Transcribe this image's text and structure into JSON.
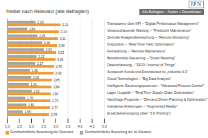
{
  "logo": "JPN",
  "chart_data": {
    "type": "bar",
    "orientation": "horizontal",
    "title": "Treiber nach Relevanz (alle Befragten)",
    "subtitle": "Alle Befragten – Nutzer + Dienstleister",
    "categories": [
      "Transparenz über KPI – \"Digital Performance Management\"",
      "Vorausschauende Wartung – \"Predictive Maintenance\"",
      "Zentrale Anlagenüberwachung – \"Remote Monitoring\"",
      "Disposition – \"Real Time Yield Optimization\"",
      "Fernwartung – \"Remote Maintenance\"",
      "Betriebsmittel-Steuerung – \"Smart Metering\"",
      "Datenerfassung – \"RFID / Internet of Things\"",
      "Austausch Kunde und Dienstleister zu „Industrie 4.0\"",
      "Cloud-Technologien – \"Big Data Analysis\"",
      "Intelligente Steuerungsprozesse – \"Advanced Process Control\"",
      "Lager / Logistik – \"Real Time Supply Chain Optimization\"",
      "Nachfrage-Prognose – \"Demand Driven Planning & Optimization\"",
      "Interaktive Anleitungen – \"Augmented Reality\"",
      "Ersatzteilversorgung (über \"3 D Printing\")"
    ],
    "series": [
      {
        "name": "Durchschnittliche Bewertung der Relevanz",
        "color": "#ed9b33",
        "values": [
          3.21,
          3.14,
          3.11,
          3.06,
          3.03,
          3.0,
          2.95,
          2.93,
          2.85,
          2.84,
          2.81,
          2.79,
          2.77,
          2.74
        ],
        "value_labels": [
          "3,21",
          "3,14",
          "3,11",
          "3,06",
          "3,03",
          "3,00",
          "2,95",
          "2,93",
          "2,85",
          "2,84",
          "2,81",
          "2,79",
          "2,77",
          "2,74"
        ]
      },
      {
        "name": "Durchschnittliche Bewertung der Ist-Situation",
        "color": "#a5a5a5",
        "values": [
          2.18,
          1.84,
          2.26,
          2.46,
          2.53,
          2.22,
          2.17,
          1.95,
          2.0,
          1.91,
          2.02,
          1.76,
          1.81,
          1.65
        ],
        "value_labels": [
          "2,18",
          "1,84",
          "2,26",
          "2,46",
          "2,53",
          "2,22",
          "2,17",
          "1,95",
          "2,00",
          "1,91",
          "2,02",
          "1,76",
          "1,81",
          "1,65"
        ]
      }
    ],
    "xlim": [
      1,
      5
    ],
    "xticks": [
      {
        "value": 1,
        "label": "1,0"
      },
      {
        "value": 1.5,
        "label": "1,5"
      },
      {
        "value": 2,
        "label": "2,0"
      },
      {
        "value": 2.5,
        "label": "2,5"
      },
      {
        "value": 3,
        "label": "3,0"
      },
      {
        "value": 3.5,
        "label": "3,5"
      },
      {
        "value": 4,
        "label": "4,0"
      },
      {
        "value": 4.5,
        "label": "4,5"
      },
      {
        "value": 5,
        "label": "5,0"
      }
    ],
    "grid": true,
    "data_labels": true,
    "legend": "bottom"
  }
}
